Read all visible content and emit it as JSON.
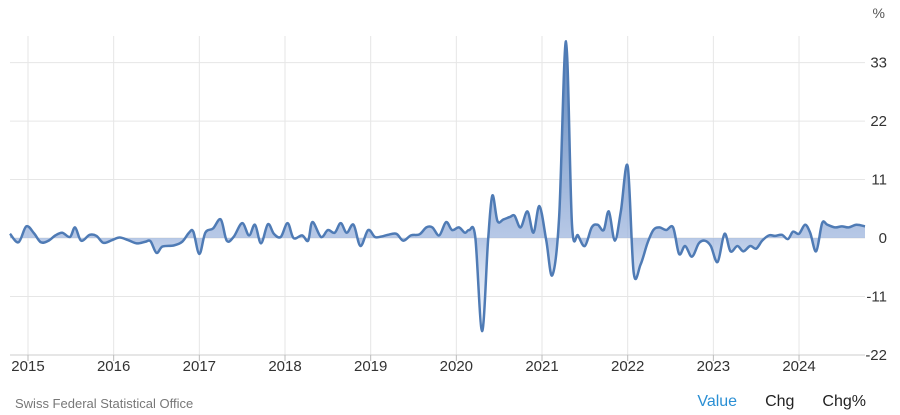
{
  "chart_data": {
    "type": "area",
    "unit": "%",
    "colors": {
      "line": "#4f7bb5",
      "fill": "#9fb6de",
      "grid": "#e6e6e6"
    },
    "ylim": [
      -22,
      38
    ],
    "yticks": [
      {
        "v": 33,
        "label": "33"
      },
      {
        "v": 22,
        "label": "22"
      },
      {
        "v": 11,
        "label": "11"
      },
      {
        "v": 0,
        "label": "0"
      },
      {
        "v": -11,
        "label": "-11"
      },
      {
        "v": -22,
        "label": "-22"
      }
    ],
    "xlim": [
      2014.79,
      2024.77
    ],
    "xticks": [
      {
        "v": 2015.0,
        "label": "2015"
      },
      {
        "v": 2016.0,
        "label": "2016"
      },
      {
        "v": 2017.0,
        "label": "2017"
      },
      {
        "v": 2018.0,
        "label": "2018"
      },
      {
        "v": 2019.0,
        "label": "2019"
      },
      {
        "v": 2020.0,
        "label": "2020"
      },
      {
        "v": 2021.0,
        "label": "2021"
      },
      {
        "v": 2022.0,
        "label": "2022"
      },
      {
        "v": 2023.0,
        "label": "2023"
      },
      {
        "v": 2024.0,
        "label": "2024"
      }
    ],
    "grid": true,
    "x": [
      2014.79,
      2014.89,
      2014.98,
      2015.07,
      2015.15,
      2015.24,
      2015.32,
      2015.4,
      2015.49,
      2015.55,
      2015.62,
      2015.72,
      2015.8,
      2015.88,
      2015.98,
      2016.07,
      2016.17,
      2016.27,
      2016.37,
      2016.43,
      2016.5,
      2016.57,
      2016.7,
      2016.8,
      2016.88,
      2016.93,
      2017.0,
      2017.07,
      2017.16,
      2017.25,
      2017.32,
      2017.4,
      2017.5,
      2017.58,
      2017.65,
      2017.72,
      2017.8,
      2017.87,
      2017.95,
      2018.03,
      2018.1,
      2018.2,
      2018.27,
      2018.32,
      2018.42,
      2018.5,
      2018.58,
      2018.65,
      2018.72,
      2018.8,
      2018.88,
      2018.97,
      2019.05,
      2019.13,
      2019.2,
      2019.3,
      2019.38,
      2019.47,
      2019.57,
      2019.65,
      2019.72,
      2019.8,
      2019.88,
      2019.95,
      2020.03,
      2020.1,
      2020.15,
      2020.22,
      2020.3,
      2020.37,
      2020.42,
      2020.48,
      2020.55,
      2020.63,
      2020.68,
      2020.75,
      2020.83,
      2020.9,
      2020.97,
      2021.05,
      2021.12,
      2021.2,
      2021.28,
      2021.35,
      2021.42,
      2021.5,
      2021.58,
      2021.65,
      2021.72,
      2021.78,
      2021.85,
      2021.92,
      2022.0,
      2022.07,
      2022.15,
      2022.23,
      2022.3,
      2022.37,
      2022.45,
      2022.53,
      2022.6,
      2022.67,
      2022.75,
      2022.83,
      2022.9,
      2022.97,
      2023.05,
      2023.13,
      2023.2,
      2023.28,
      2023.35,
      2023.43,
      2023.5,
      2023.57,
      2023.65,
      2023.72,
      2023.8,
      2023.87,
      2023.93,
      2024.0,
      2024.07,
      2024.13,
      2024.2,
      2024.27,
      2024.33,
      2024.42,
      2024.5,
      2024.58,
      2024.67,
      2024.77
    ],
    "values": [
      0.8,
      -0.8,
      2.2,
      0.9,
      -0.8,
      -0.5,
      0.5,
      1.0,
      0.2,
      2.0,
      -0.5,
      0.6,
      0.4,
      -0.9,
      -0.4,
      0.1,
      -0.4,
      -1.0,
      -0.7,
      -0.6,
      -2.8,
      -1.6,
      -1.4,
      -0.7,
      1.0,
      1.2,
      -3.0,
      1.0,
      1.8,
      3.5,
      -0.5,
      0.2,
      2.8,
      0.5,
      2.5,
      -1.0,
      2.6,
      0.8,
      0.2,
      2.8,
      0.0,
      0.5,
      -0.5,
      3.0,
      0.2,
      1.5,
      1.0,
      2.8,
      1.0,
      2.5,
      -1.5,
      1.5,
      0.2,
      0.3,
      0.6,
      0.8,
      -0.5,
      0.5,
      0.7,
      2.0,
      2.0,
      0.5,
      3.0,
      1.5,
      2.0,
      1.0,
      1.5,
      0.3,
      -17.5,
      -0.5,
      8.0,
      3.2,
      3.5,
      4.0,
      4.2,
      2.0,
      5.0,
      1.0,
      6.0,
      -0.5,
      -7.0,
      4.0,
      37.0,
      2.5,
      0.5,
      -1.5,
      2.0,
      2.5,
      1.5,
      5.0,
      -0.5,
      5.0,
      13.5,
      -6.5,
      -5.0,
      -1.0,
      1.5,
      2.0,
      1.5,
      2.0,
      -3.0,
      -1.5,
      -3.5,
      -1.0,
      -0.5,
      -1.5,
      -4.5,
      0.8,
      -2.5,
      -1.5,
      -2.5,
      -1.5,
      -2.0,
      -0.5,
      0.5,
      0.4,
      0.6,
      -0.2,
      1.2,
      0.8,
      2.5,
      1.0,
      -2.5,
      2.8,
      2.5,
      2.0,
      2.2,
      2.0,
      2.5,
      2.2
    ]
  },
  "footer": {
    "source": "Swiss Federal Statistical Office",
    "tabs": [
      {
        "label": "Value",
        "active": true
      },
      {
        "label": "Chg",
        "active": false
      },
      {
        "label": "Chg%",
        "active": false
      }
    ]
  }
}
